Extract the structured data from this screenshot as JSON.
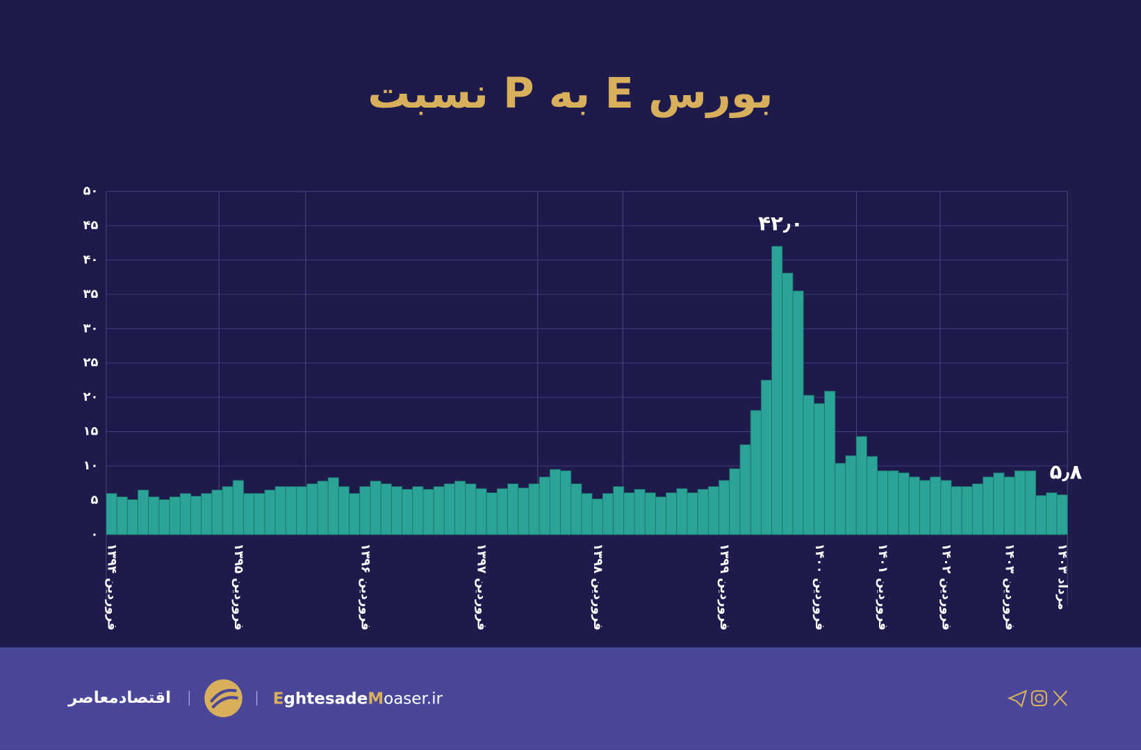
{
  "chart_data": {
    "type": "bar",
    "title": "نسبت P به E بورس",
    "categories": [
      "فروردین ۱۳۹۴",
      null,
      null,
      null,
      null,
      null,
      null,
      null,
      null,
      null,
      null,
      null,
      "فروردین ۱۳۹۵",
      null,
      null,
      null,
      null,
      null,
      null,
      null,
      null,
      null,
      null,
      null,
      "فروردین ۱۳۹۶",
      null,
      null,
      null,
      null,
      null,
      null,
      null,
      null,
      null,
      null,
      "فروردین ۱۳۹۷",
      null,
      null,
      null,
      null,
      null,
      null,
      null,
      null,
      null,
      null,
      "فروردین ۱۳۹۸",
      null,
      null,
      null,
      null,
      null,
      null,
      null,
      null,
      null,
      null,
      null,
      "فروردین ۱۳۹۹",
      null,
      null,
      null,
      null,
      null,
      null,
      null,
      null,
      "فروردین ۱۴۰۰",
      null,
      null,
      null,
      null,
      null,
      "فروردین ۱۴۰۱",
      null,
      null,
      null,
      null,
      null,
      "فروردین ۱۴۰۲",
      null,
      null,
      null,
      null,
      null,
      "فروردین ۱۴۰۳",
      null,
      null,
      null,
      null,
      "مرداد ۱۴۰۳"
    ],
    "values": [
      6.0,
      5.5,
      5.1,
      6.5,
      5.5,
      5.1,
      5.5,
      6.0,
      5.6,
      6.0,
      6.5,
      7.0,
      7.9,
      6.0,
      6.0,
      6.5,
      7.0,
      7.0,
      7.0,
      7.4,
      7.8,
      8.3,
      7.0,
      6.0,
      7.0,
      7.8,
      7.4,
      7.0,
      6.6,
      7.0,
      6.6,
      7.0,
      7.4,
      7.8,
      7.4,
      6.7,
      6.1,
      6.7,
      7.4,
      6.8,
      7.4,
      8.4,
      9.5,
      9.3,
      7.4,
      6.0,
      5.2,
      6.0,
      7.0,
      6.1,
      6.6,
      6.1,
      5.5,
      6.1,
      6.7,
      6.1,
      6.6,
      7.0,
      7.9,
      9.6,
      13.1,
      18.1,
      22.5,
      42.0,
      38.1,
      35.5,
      20.3,
      19.1,
      20.9,
      10.4,
      11.5,
      14.3,
      11.4,
      9.3,
      9.3,
      9.0,
      8.4,
      7.9,
      8.4,
      7.9,
      7.0,
      7.0,
      7.4,
      8.4,
      9.0,
      8.4,
      9.3,
      9.3,
      5.7,
      6.1,
      5.8
    ],
    "value_labels": [
      null,
      null,
      null,
      null,
      null,
      null,
      null,
      null,
      null,
      null,
      null,
      null,
      null,
      null,
      null,
      null,
      null,
      null,
      null,
      null,
      null,
      null,
      null,
      null,
      null,
      null,
      null,
      null,
      null,
      null,
      null,
      null,
      null,
      null,
      null,
      null,
      null,
      null,
      null,
      null,
      null,
      null,
      null,
      null,
      null,
      null,
      null,
      null,
      null,
      null,
      null,
      null,
      null,
      null,
      null,
      null,
      null,
      null,
      null,
      null,
      null,
      null,
      null,
      "۴۲٫۰",
      null,
      null,
      null,
      null,
      null,
      null,
      null,
      null,
      null,
      null,
      null,
      null,
      null,
      null,
      null,
      null,
      null,
      null,
      null,
      null,
      null,
      null,
      null,
      null,
      null,
      null,
      "۵٫۸"
    ],
    "color": "#2ba497",
    "ylim": [
      0,
      50
    ],
    "yticks": [
      {
        "value": 0,
        "label": "۰"
      },
      {
        "value": 5,
        "label": "۵"
      },
      {
        "value": 10,
        "label": "۱۰"
      },
      {
        "value": 15,
        "label": "۱۵"
      },
      {
        "value": 20,
        "label": "۲۰"
      },
      {
        "value": 25,
        "label": "۲۵"
      },
      {
        "value": 30,
        "label": "۳۰"
      },
      {
        "value": 35,
        "label": "۳۵"
      },
      {
        "value": 40,
        "label": "۴۰"
      },
      {
        "value": 45,
        "label": "۴۵"
      },
      {
        "value": 50,
        "label": "۵۰"
      }
    ],
    "grid": true
  },
  "footer": {
    "brand": "اقتصادمعاصر",
    "site_e": "E",
    "site_1": "ghtesade",
    "site_m": "M",
    "site_2": "oaser.ir"
  }
}
